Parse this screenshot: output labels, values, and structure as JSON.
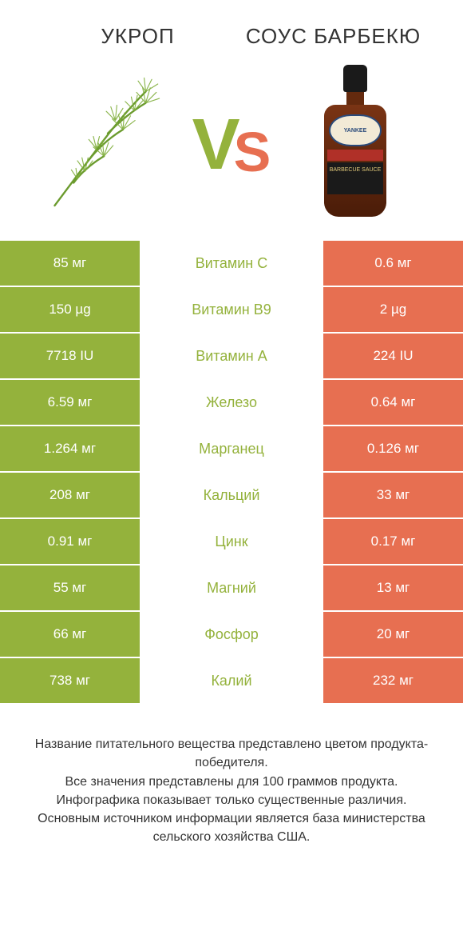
{
  "left_product": "Укроп",
  "right_product": "Соус барбекю",
  "vs": {
    "v": "V",
    "s": "S"
  },
  "colors": {
    "left": "#94b23c",
    "right": "#e76f51",
    "mid_text_left_win": "#94b23c",
    "vs_v": "#94b23c",
    "vs_s": "#e76f51"
  },
  "bottle_label": "YANKEE",
  "bottle_sub": "BARBECUE SAUCE",
  "rows": [
    {
      "name": "Витамин C",
      "left": "85 мг",
      "right": "0.6 мг",
      "winner": "left"
    },
    {
      "name": "Витамин B9",
      "left": "150 µg",
      "right": "2 µg",
      "winner": "left"
    },
    {
      "name": "Витамин A",
      "left": "7718 IU",
      "right": "224 IU",
      "winner": "left"
    },
    {
      "name": "Железо",
      "left": "6.59 мг",
      "right": "0.64 мг",
      "winner": "left"
    },
    {
      "name": "Марганец",
      "left": "1.264 мг",
      "right": "0.126 мг",
      "winner": "left"
    },
    {
      "name": "Кальций",
      "left": "208 мг",
      "right": "33 мг",
      "winner": "left"
    },
    {
      "name": "Цинк",
      "left": "0.91 мг",
      "right": "0.17 мг",
      "winner": "left"
    },
    {
      "name": "Магний",
      "left": "55 мг",
      "right": "13 мг",
      "winner": "left"
    },
    {
      "name": "Фосфор",
      "left": "66 мг",
      "right": "20 мг",
      "winner": "left"
    },
    {
      "name": "Калий",
      "left": "738 мг",
      "right": "232 мг",
      "winner": "left"
    }
  ],
  "footer": [
    "Название питательного вещества представлено цветом продукта-победителя.",
    "Все значения представлены для 100 граммов продукта.",
    "Инфографика показывает только существенные различия.",
    "Основным источником информации является база министерства сельского хозяйства США."
  ]
}
